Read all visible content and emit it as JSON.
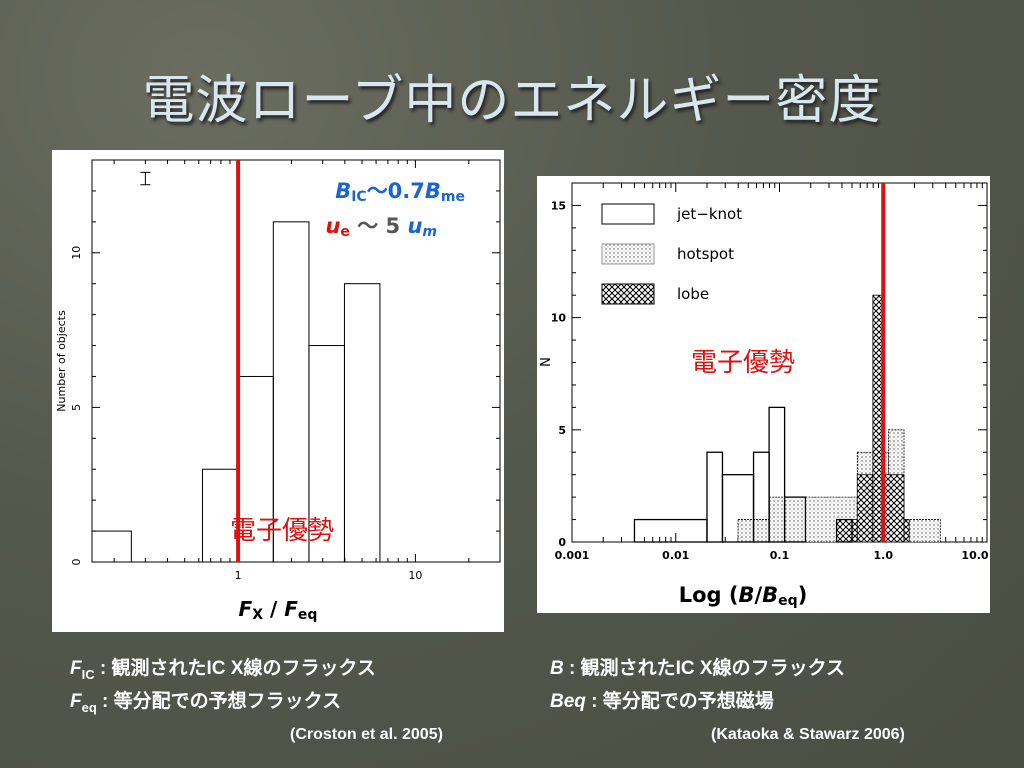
{
  "slide": {
    "title": "電波ローブ中のエネルギー密度",
    "left_caption_1": {
      "sym": "F",
      "sub": "IC",
      "text": " : 観測されたIC X線のフラックス"
    },
    "left_caption_2": {
      "sym": "F",
      "sub": "eq",
      "text": " : 等分配での予想フラックス"
    },
    "right_caption_1": {
      "sym": "B",
      "text": " : 観測されたIC X線のフラックス"
    },
    "right_caption_2": {
      "sym": "Beq",
      "text": " : 等分配での予想磁場"
    },
    "left_reference": "(Croston et al. 2005)",
    "right_reference": "(Kataoka & Stawarz 2006)"
  },
  "colors": {
    "marker_line": "#dd1111",
    "annotation_blue": "#1a66d0",
    "annotation_red": "#dd1111",
    "annotation_gray": "#555555"
  },
  "chart_data": [
    {
      "type": "bar",
      "subtype": "histogram",
      "x_scale": "log",
      "xlim": [
        0.15,
        30
      ],
      "ylim": [
        0,
        13
      ],
      "ylabel": "Number of objects",
      "xlabel": {
        "sym1": "F",
        "sub1": "X",
        "sep": " / ",
        "sym2": "F",
        "sub2": "eq"
      },
      "x_ticks": [
        1,
        10
      ],
      "y_ticks": [
        0,
        5,
        10
      ],
      "bins": [
        {
          "x0": 0.15,
          "x1": 0.25,
          "count": 1
        },
        {
          "x0": 0.25,
          "x1": 0.63,
          "count": 0
        },
        {
          "x0": 0.63,
          "x1": 1.0,
          "count": 3
        },
        {
          "x0": 1.0,
          "x1": 1.58,
          "count": 6
        },
        {
          "x0": 1.58,
          "x1": 2.51,
          "count": 11
        },
        {
          "x0": 2.51,
          "x1": 3.98,
          "count": 7
        },
        {
          "x0": 3.98,
          "x1": 6.31,
          "count": 9
        }
      ],
      "error_bar": {
        "x": 0.3,
        "y_low": 12.2,
        "y_high": 12.6
      },
      "reference_line_x": 1,
      "annotation_line_1": {
        "sym": "B",
        "sub": "IC",
        "rel": "～0.7",
        "sym2": "B",
        "sub2": "me"
      },
      "annotation_line_2": {
        "sym": "u",
        "sub": "e",
        "rel": " ～ 5 ",
        "sym2": "u",
        "sub2": "m"
      },
      "region_label": "電子優勢"
    },
    {
      "type": "bar",
      "subtype": "stacked-histogram",
      "x_scale": "log",
      "xlim": [
        0.001,
        10
      ],
      "ylim": [
        0,
        16
      ],
      "ylabel": "N",
      "xlabel": {
        "prefix": "Log (",
        "sym1": "B",
        "sep": "/",
        "sym2": "B",
        "sub2": "eq",
        "suffix": ")"
      },
      "x_tick_labels": [
        "0.001",
        "0.01",
        "0.1",
        "1.0",
        "10.0"
      ],
      "y_ticks": [
        0,
        5,
        10,
        15
      ],
      "reference_line_x": 1.0,
      "region_label": "電子優勢",
      "legend": {
        "position": "top-left",
        "entries": [
          "jet−knot",
          "hotspot",
          "lobe"
        ]
      },
      "series": [
        {
          "name": "jet−knot",
          "fill": "open",
          "bins": [
            {
              "x0": 0.004,
              "x1": 0.02,
              "count": 1
            },
            {
              "x0": 0.02,
              "x1": 0.0282,
              "count": 4
            },
            {
              "x0": 0.0282,
              "x1": 0.0562,
              "count": 3
            },
            {
              "x0": 0.0562,
              "x1": 0.0794,
              "count": 4
            },
            {
              "x0": 0.0794,
              "x1": 0.112,
              "count": 6
            },
            {
              "x0": 0.112,
              "x1": 0.178,
              "count": 2
            },
            {
              "x0": 0.178,
              "x1": 0.355,
              "count": 0
            },
            {
              "x0": 0.355,
              "x1": 0.5,
              "count": 1
            }
          ]
        },
        {
          "name": "hotspot",
          "fill": "dotted",
          "bins": [
            {
              "x0": 0.0398,
              "x1": 0.0794,
              "count": 1
            },
            {
              "x0": 0.0794,
              "x1": 0.178,
              "count": 2
            },
            {
              "x0": 0.178,
              "x1": 0.562,
              "count": 2
            },
            {
              "x0": 0.562,
              "x1": 1.122,
              "count": 4
            },
            {
              "x0": 1.122,
              "x1": 1.585,
              "count": 5
            },
            {
              "x0": 1.585,
              "x1": 3.548,
              "count": 1
            }
          ]
        },
        {
          "name": "lobe",
          "fill": "crosshatch",
          "bins": [
            {
              "x0": 0.355,
              "x1": 0.562,
              "count": 1
            },
            {
              "x0": 0.562,
              "x1": 0.794,
              "count": 3
            },
            {
              "x0": 0.794,
              "x1": 1.0,
              "count": 11
            },
            {
              "x0": 1.0,
              "x1": 1.585,
              "count": 3
            },
            {
              "x0": 1.585,
              "x1": 1.778,
              "count": 1
            }
          ]
        }
      ]
    }
  ]
}
